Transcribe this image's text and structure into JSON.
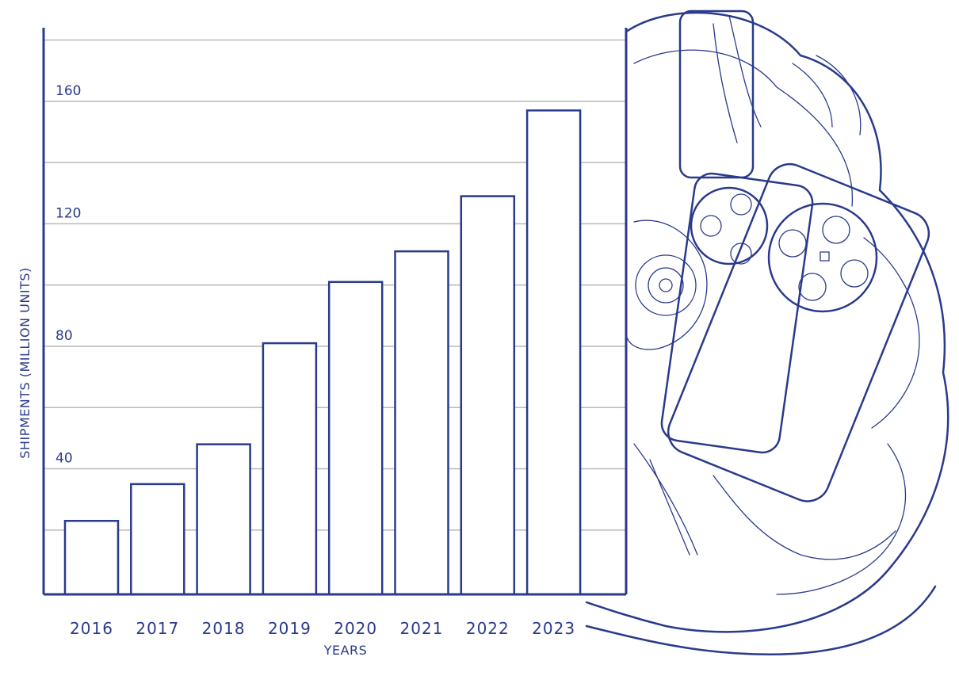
{
  "chart_data": {
    "type": "bar",
    "title": "",
    "xlabel": "YEARS",
    "ylabel": "SHIPMENTS (MILLION UNITS)",
    "categories": [
      "2016",
      "2017",
      "2018",
      "2019",
      "2020",
      "2021",
      "2022",
      "2023"
    ],
    "values": [
      23,
      35,
      48,
      81,
      101,
      111,
      129,
      157
    ],
    "ylim": [
      -1,
      184
    ],
    "yticks": [
      40,
      80,
      120,
      160
    ],
    "grid": true,
    "legend": "none",
    "colors": {
      "bar_stroke": "#2a3a8c",
      "bar_fill": "#ffffff",
      "grid": "#b9b9b9",
      "text": "#2a3a8c"
    },
    "decoration": "line-art-illustration-phones"
  }
}
